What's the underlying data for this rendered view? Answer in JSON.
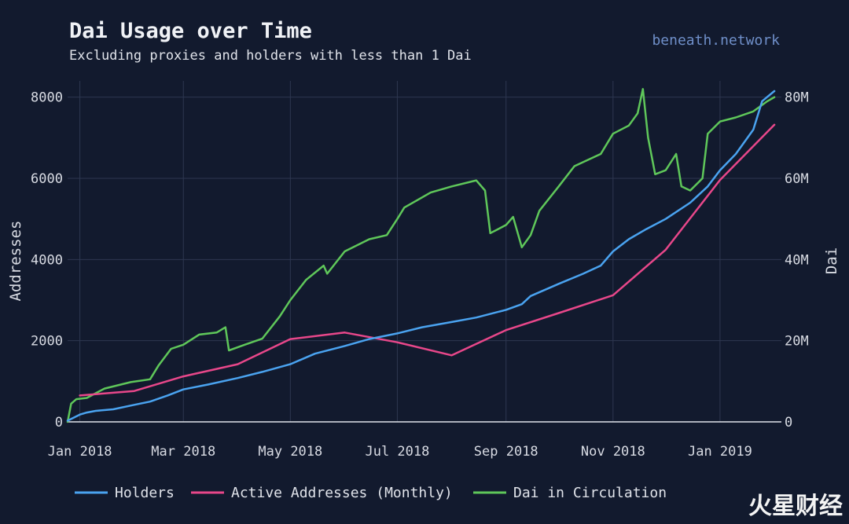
{
  "chart_data": {
    "type": "line",
    "title": "Dai Usage over Time",
    "subtitle": "Excluding proxies and holders with less than 1 Dai",
    "source": "beneath.network",
    "ylabel": "Addresses",
    "y2label": "Dai",
    "ylim": [
      0,
      8400
    ],
    "y2lim": [
      0,
      84000000
    ],
    "xlim": [
      "2017-12-25",
      "2019-02-05"
    ],
    "x_ticks": [
      {
        "date": "2018-01-01",
        "label": "Jan 2018"
      },
      {
        "date": "2018-03-01",
        "label": "Mar 2018"
      },
      {
        "date": "2018-05-01",
        "label": "May 2018"
      },
      {
        "date": "2018-07-01",
        "label": "Jul 2018"
      },
      {
        "date": "2018-09-01",
        "label": "Sep 2018"
      },
      {
        "date": "2018-11-01",
        "label": "Nov 2018"
      },
      {
        "date": "2019-01-01",
        "label": "Jan 2019"
      }
    ],
    "y_ticks": [
      {
        "value": 0,
        "label": "0"
      },
      {
        "value": 2000,
        "label": "2000"
      },
      {
        "value": 4000,
        "label": "4000"
      },
      {
        "value": 6000,
        "label": "6000"
      },
      {
        "value": 8000,
        "label": "8000"
      }
    ],
    "y2_ticks": [
      {
        "value": 0,
        "label": "0"
      },
      {
        "value": 20000000,
        "label": "20M"
      },
      {
        "value": 40000000,
        "label": "40M"
      },
      {
        "value": 60000000,
        "label": "60M"
      },
      {
        "value": 80000000,
        "label": "80M"
      }
    ],
    "grid": true,
    "legend_position": "bottom",
    "series": [
      {
        "name": "Holders",
        "axis": "left",
        "color": "#4aa3f0",
        "points": [
          [
            "2017-12-25",
            30
          ],
          [
            "2018-01-01",
            180
          ],
          [
            "2018-01-05",
            230
          ],
          [
            "2018-01-10",
            270
          ],
          [
            "2018-01-20",
            310
          ],
          [
            "2018-02-01",
            420
          ],
          [
            "2018-02-10",
            500
          ],
          [
            "2018-02-20",
            650
          ],
          [
            "2018-03-01",
            800
          ],
          [
            "2018-03-15",
            920
          ],
          [
            "2018-04-01",
            1080
          ],
          [
            "2018-04-15",
            1230
          ],
          [
            "2018-05-01",
            1420
          ],
          [
            "2018-05-15",
            1680
          ],
          [
            "2018-06-01",
            1870
          ],
          [
            "2018-06-15",
            2040
          ],
          [
            "2018-07-01",
            2180
          ],
          [
            "2018-07-15",
            2330
          ],
          [
            "2018-08-01",
            2460
          ],
          [
            "2018-08-15",
            2570
          ],
          [
            "2018-09-01",
            2760
          ],
          [
            "2018-09-10",
            2900
          ],
          [
            "2018-09-15",
            3100
          ],
          [
            "2018-10-01",
            3400
          ],
          [
            "2018-10-15",
            3650
          ],
          [
            "2018-10-25",
            3850
          ],
          [
            "2018-11-01",
            4200
          ],
          [
            "2018-11-10",
            4500
          ],
          [
            "2018-11-20",
            4750
          ],
          [
            "2018-12-01",
            5000
          ],
          [
            "2018-12-15",
            5400
          ],
          [
            "2018-12-25",
            5800
          ],
          [
            "2019-01-01",
            6200
          ],
          [
            "2019-01-10",
            6600
          ],
          [
            "2019-01-20",
            7200
          ],
          [
            "2019-01-25",
            7900
          ],
          [
            "2019-02-01",
            8150
          ]
        ]
      },
      {
        "name": "Active Addresses (Monthly)",
        "axis": "left",
        "color": "#e8478a",
        "points": [
          [
            "2018-01-01",
            650
          ],
          [
            "2018-02-01",
            760
          ],
          [
            "2018-03-01",
            1120
          ],
          [
            "2018-04-01",
            1420
          ],
          [
            "2018-05-01",
            2040
          ],
          [
            "2018-06-01",
            2200
          ],
          [
            "2018-07-01",
            1960
          ],
          [
            "2018-08-01",
            1640
          ],
          [
            "2018-09-01",
            2260
          ],
          [
            "2018-10-01",
            2680
          ],
          [
            "2018-11-01",
            3120
          ],
          [
            "2018-12-01",
            4240
          ],
          [
            "2019-01-01",
            5960
          ],
          [
            "2019-02-01",
            7320
          ]
        ]
      },
      {
        "name": "Dai in Circulation",
        "axis": "right",
        "color": "#5fc75a",
        "points": [
          [
            "2017-12-25",
            0
          ],
          [
            "2017-12-27",
            4500000
          ],
          [
            "2017-12-30",
            5600000
          ],
          [
            "2018-01-05",
            5900000
          ],
          [
            "2018-01-15",
            8200000
          ],
          [
            "2018-01-30",
            9800000
          ],
          [
            "2018-02-10",
            10500000
          ],
          [
            "2018-02-15",
            14000000
          ],
          [
            "2018-02-22",
            18000000
          ],
          [
            "2018-03-01",
            19000000
          ],
          [
            "2018-03-10",
            21500000
          ],
          [
            "2018-03-20",
            22000000
          ],
          [
            "2018-03-25",
            23300000
          ],
          [
            "2018-03-27",
            17600000
          ],
          [
            "2018-04-05",
            19000000
          ],
          [
            "2018-04-15",
            20500000
          ],
          [
            "2018-04-25",
            26000000
          ],
          [
            "2018-05-01",
            30000000
          ],
          [
            "2018-05-10",
            35000000
          ],
          [
            "2018-05-20",
            38500000
          ],
          [
            "2018-05-22",
            36500000
          ],
          [
            "2018-06-01",
            42000000
          ],
          [
            "2018-06-15",
            45000000
          ],
          [
            "2018-06-25",
            46000000
          ],
          [
            "2018-07-01",
            50000000
          ],
          [
            "2018-07-05",
            52800000
          ],
          [
            "2018-07-20",
            56500000
          ],
          [
            "2018-08-01",
            58000000
          ],
          [
            "2018-08-15",
            59500000
          ],
          [
            "2018-08-20",
            57000000
          ],
          [
            "2018-08-23",
            46500000
          ],
          [
            "2018-09-01",
            48500000
          ],
          [
            "2018-09-05",
            50500000
          ],
          [
            "2018-09-10",
            43000000
          ],
          [
            "2018-09-15",
            46000000
          ],
          [
            "2018-09-20",
            52000000
          ],
          [
            "2018-10-01",
            58000000
          ],
          [
            "2018-10-10",
            63000000
          ],
          [
            "2018-10-25",
            66000000
          ],
          [
            "2018-11-01",
            71000000
          ],
          [
            "2018-11-10",
            73000000
          ],
          [
            "2018-11-15",
            76000000
          ],
          [
            "2018-11-18",
            82000000
          ],
          [
            "2018-11-21",
            70000000
          ],
          [
            "2018-11-25",
            61000000
          ],
          [
            "2018-12-01",
            62000000
          ],
          [
            "2018-12-07",
            66000000
          ],
          [
            "2018-12-10",
            58000000
          ],
          [
            "2018-12-15",
            57000000
          ],
          [
            "2018-12-22",
            60000000
          ],
          [
            "2018-12-25",
            71000000
          ],
          [
            "2019-01-01",
            74000000
          ],
          [
            "2019-01-10",
            75000000
          ],
          [
            "2019-01-20",
            76500000
          ],
          [
            "2019-01-28",
            79000000
          ],
          [
            "2019-02-01",
            80000000
          ]
        ]
      }
    ]
  },
  "watermark": "火星财经"
}
